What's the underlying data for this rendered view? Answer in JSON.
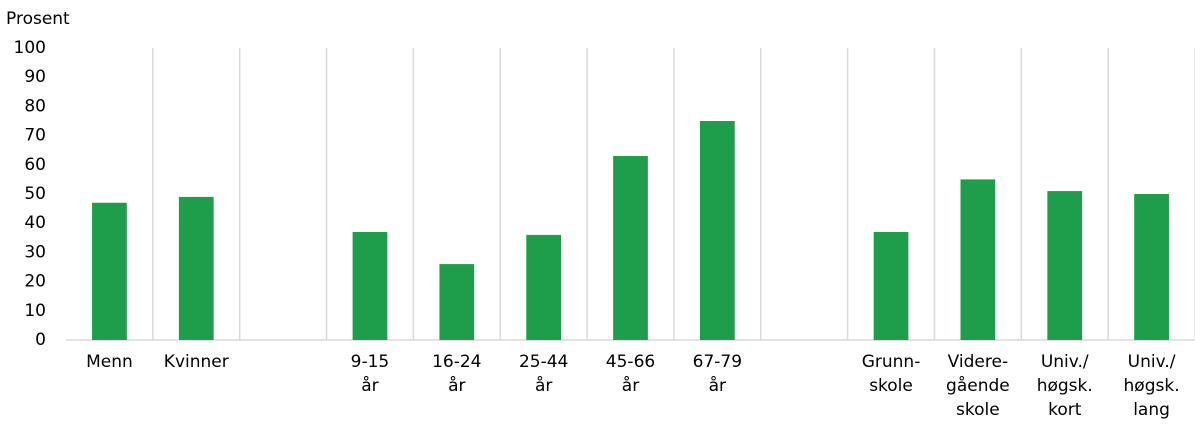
{
  "chart_data": {
    "type": "bar",
    "y_axis_label": "Prosent",
    "categories": [
      [
        "Menn"
      ],
      [
        "Kvinner"
      ],
      null,
      [
        "9-15",
        "år"
      ],
      [
        "16-24",
        "år"
      ],
      [
        "25-44",
        "år"
      ],
      [
        "45-66",
        "år"
      ],
      [
        "67-79",
        "år"
      ],
      null,
      [
        "Grunn-",
        "skole"
      ],
      [
        "Videre-",
        "gående",
        "skole"
      ],
      [
        "Univ./",
        "høgsk.",
        "kort"
      ],
      [
        "Univ./",
        "høgsk.",
        "lang"
      ]
    ],
    "values": [
      47,
      49,
      null,
      37,
      26,
      36,
      63,
      75,
      null,
      37,
      55,
      51,
      50
    ],
    "color": "#1e9e4b",
    "ylim": [
      0,
      100
    ],
    "yticks": [
      0,
      10,
      20,
      30,
      40,
      50,
      60,
      70,
      80,
      90,
      100
    ]
  }
}
